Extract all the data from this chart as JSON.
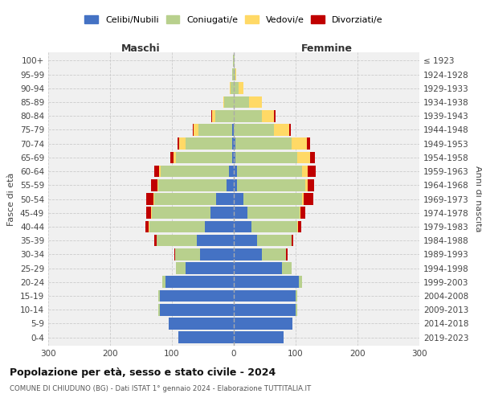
{
  "age_groups": [
    "0-4",
    "5-9",
    "10-14",
    "15-19",
    "20-24",
    "25-29",
    "30-34",
    "35-39",
    "40-44",
    "45-49",
    "50-54",
    "55-59",
    "60-64",
    "65-69",
    "70-74",
    "75-79",
    "80-84",
    "85-89",
    "90-94",
    "95-99",
    "100+"
  ],
  "birth_years": [
    "2019-2023",
    "2014-2018",
    "2009-2013",
    "2004-2008",
    "1999-2003",
    "1994-1998",
    "1989-1993",
    "1984-1988",
    "1979-1983",
    "1974-1978",
    "1969-1973",
    "1964-1968",
    "1959-1963",
    "1954-1958",
    "1949-1953",
    "1944-1948",
    "1939-1943",
    "1934-1938",
    "1929-1933",
    "1924-1928",
    "≤ 1923"
  ],
  "males": {
    "celibi": [
      90,
      105,
      120,
      120,
      110,
      78,
      55,
      60,
      47,
      38,
      28,
      12,
      8,
      3,
      3,
      2,
      0,
      0,
      0,
      0,
      0
    ],
    "coniugati": [
      0,
      0,
      2,
      2,
      5,
      15,
      40,
      65,
      90,
      95,
      100,
      110,
      110,
      90,
      75,
      55,
      30,
      15,
      5,
      2,
      1
    ],
    "vedovi": [
      0,
      0,
      0,
      0,
      0,
      0,
      0,
      0,
      1,
      1,
      2,
      2,
      3,
      5,
      10,
      8,
      5,
      2,
      1,
      0,
      0
    ],
    "divorziati": [
      0,
      0,
      0,
      0,
      0,
      1,
      1,
      3,
      5,
      8,
      12,
      10,
      8,
      5,
      3,
      1,
      1,
      0,
      0,
      0,
      0
    ]
  },
  "females": {
    "nubili": [
      80,
      95,
      100,
      100,
      105,
      78,
      45,
      38,
      28,
      22,
      15,
      5,
      5,
      3,
      3,
      0,
      0,
      0,
      0,
      0,
      0
    ],
    "coniugate": [
      0,
      0,
      2,
      2,
      5,
      15,
      40,
      55,
      75,
      85,
      95,
      110,
      105,
      100,
      90,
      65,
      45,
      25,
      8,
      2,
      1
    ],
    "vedove": [
      0,
      0,
      0,
      0,
      0,
      0,
      0,
      0,
      1,
      1,
      3,
      5,
      10,
      20,
      25,
      25,
      20,
      20,
      8,
      2,
      0
    ],
    "divorziate": [
      0,
      0,
      0,
      0,
      1,
      1,
      2,
      3,
      5,
      8,
      15,
      10,
      12,
      8,
      5,
      2,
      2,
      0,
      0,
      0,
      0
    ]
  },
  "colors": {
    "celibi_nubili": "#4472c4",
    "coniugati": "#b8d08d",
    "vedovi": "#ffd966",
    "divorziati": "#c00000"
  },
  "xlim": 300,
  "title": "Popolazione per età, sesso e stato civile - 2024",
  "subtitle": "COMUNE DI CHIUDUNO (BG) - Dati ISTAT 1° gennaio 2024 - Elaborazione TUTTITALIA.IT",
  "ylabel_left": "Fasce di età",
  "ylabel_right": "Anni di nascita",
  "xlabel_left": "Maschi",
  "xlabel_right": "Femmine",
  "background_color": "#ffffff",
  "grid_color": "#cccccc"
}
